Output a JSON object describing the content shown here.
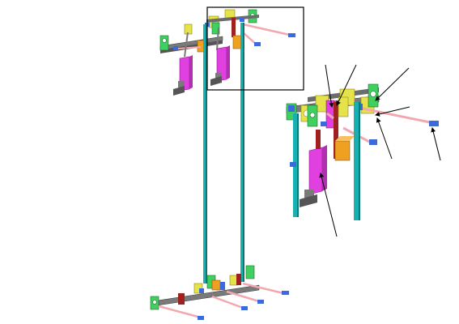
{
  "figure": {
    "main_assembly": {
      "parts": [
        "left-vertical-shaft",
        "right-vertical-shaft",
        "top-linkage-assembly",
        "bottom-linkage-assembly",
        "left-actuator",
        "right-actuator"
      ]
    },
    "detail_view": {
      "callout_count": 6
    },
    "colors": {
      "shaft": "#18b0b0",
      "shaft_dark": "#0b7878",
      "actuator": "#e040e0",
      "actuator_dark": "#8a208a",
      "bracket_green": "#3fd060",
      "bracket_yellow": "#e6e24a",
      "bracket_orange": "#f0a020",
      "rod_pink": "#f1a8b0",
      "rod_blue": "#3a6adc",
      "linkage_gray": "#7a7a7a",
      "dark_red": "#a02020",
      "outline": "#000000"
    }
  }
}
